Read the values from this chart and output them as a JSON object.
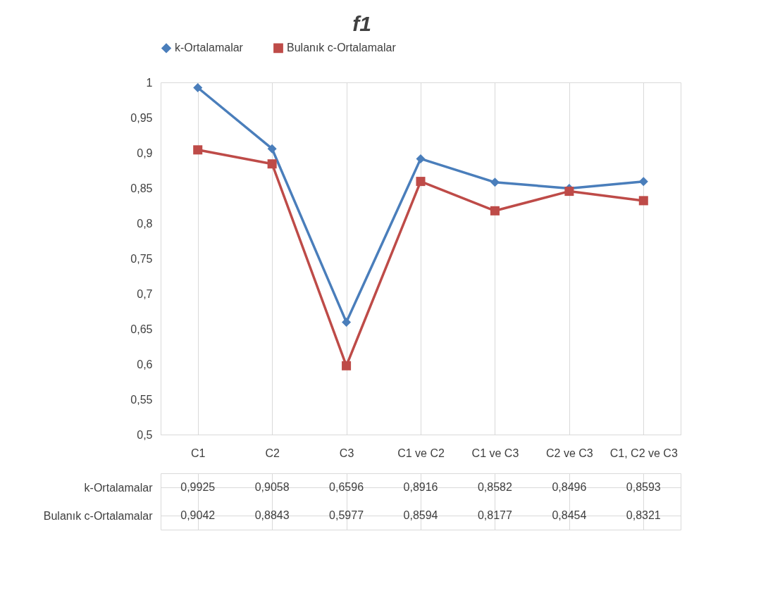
{
  "chart_data": {
    "type": "line",
    "title": "f1",
    "categories": [
      "C1",
      "C2",
      "C3",
      "C1 ve C2",
      "C1 ve C3",
      "C2 ve C3",
      "C1, C2 ve C3"
    ],
    "series": [
      {
        "name": "k-Ortalamalar",
        "color": "#4a7ebb",
        "marker": "diamond",
        "values": [
          0.9925,
          0.9058,
          0.6596,
          0.8916,
          0.8582,
          0.8496,
          0.8593
        ],
        "value_labels": [
          "0,9925",
          "0,9058",
          "0,6596",
          "0,8916",
          "0,8582",
          "0,8496",
          "0,8593"
        ]
      },
      {
        "name": "Bulanık c-Ortalamalar",
        "color": "#be4b48",
        "marker": "square",
        "values": [
          0.9042,
          0.8843,
          0.5977,
          0.8594,
          0.8177,
          0.8454,
          0.8321
        ],
        "value_labels": [
          "0,9042",
          "0,8843",
          "0,5977",
          "0,8594",
          "0,8177",
          "0,8454",
          "0,8321"
        ]
      }
    ],
    "ylim": [
      0.5,
      1
    ],
    "yticks": [
      {
        "value": 0.5,
        "label": "0,5"
      },
      {
        "value": 0.55,
        "label": "0,55"
      },
      {
        "value": 0.6,
        "label": "0,6"
      },
      {
        "value": 0.65,
        "label": "0,65"
      },
      {
        "value": 0.7,
        "label": "0,7"
      },
      {
        "value": 0.75,
        "label": "0,75"
      },
      {
        "value": 0.8,
        "label": "0,8"
      },
      {
        "value": 0.85,
        "label": "0,85"
      },
      {
        "value": 0.9,
        "label": "0,9"
      },
      {
        "value": 0.95,
        "label": "0,95"
      },
      {
        "value": 1,
        "label": "1"
      }
    ],
    "grid": "x",
    "legend": "top"
  }
}
